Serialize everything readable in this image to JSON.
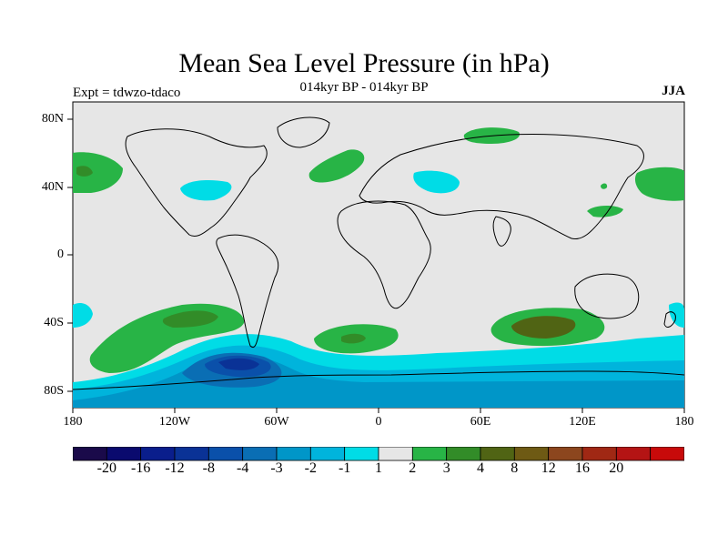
{
  "map": {
    "title": "Mean Sea Level Pressure (in hPa)",
    "subtitle": "014kyr BP - 014kyr BP",
    "experiment": "Expt = tdwzo-tdaco",
    "season": "JJA",
    "lon_ticks": [
      "180",
      "120W",
      "60W",
      "0",
      "60E",
      "120E",
      "180"
    ],
    "lat_ticks": [
      "80N",
      "40N",
      "0",
      "40S",
      "80S"
    ],
    "background_color": "#e6e6e6",
    "colorbar": {
      "colors": [
        "#1a0a4a",
        "#0a0a6e",
        "#0a1e8c",
        "#0a3296",
        "#0a50aa",
        "#0a6eb4",
        "#0096c8",
        "#00b4dc",
        "#00dce6",
        "#e6e6e6",
        "#28b446",
        "#328c28",
        "#506414",
        "#6e5a14",
        "#8c461e",
        "#a02814",
        "#b41414",
        "#c80a0a"
      ],
      "labels": [
        "-20",
        "-16",
        "-12",
        "-8",
        "-4",
        "-3",
        "-2",
        "-1",
        "1",
        "2",
        "3",
        "4",
        "8",
        "12",
        "16",
        "20"
      ]
    }
  }
}
